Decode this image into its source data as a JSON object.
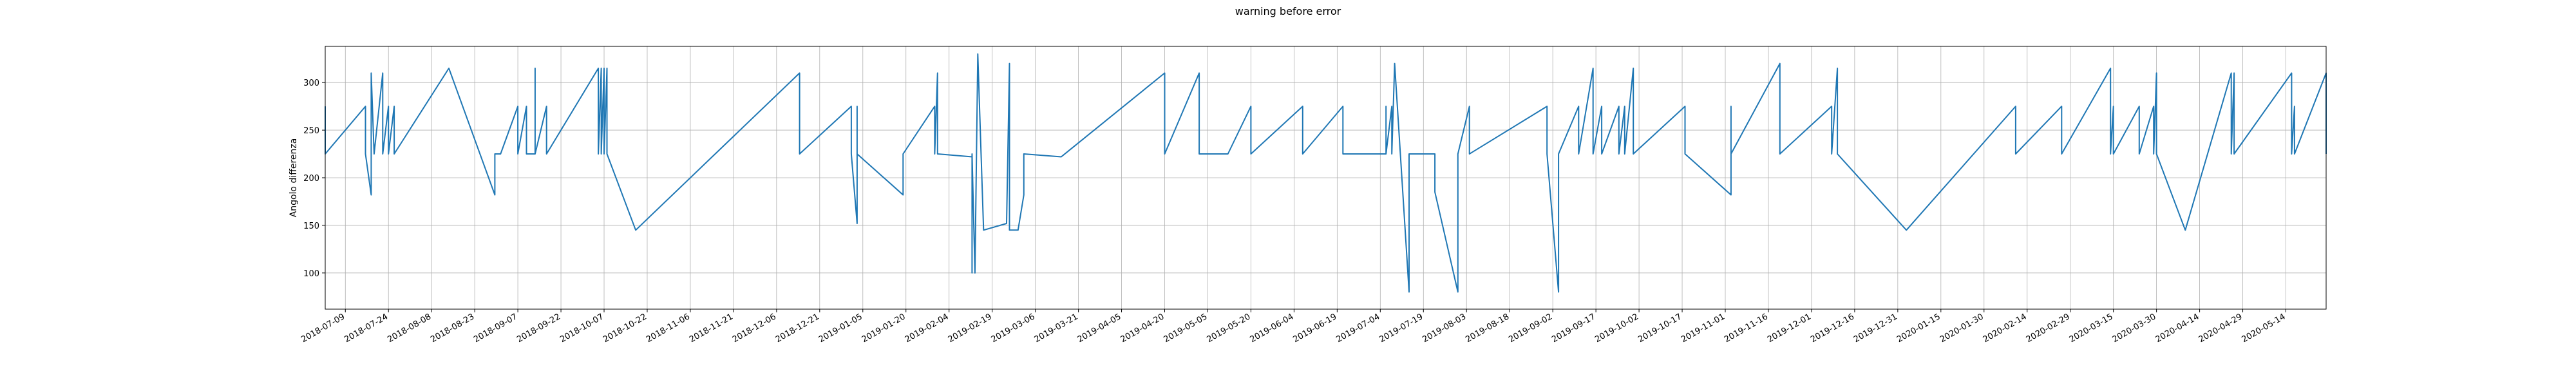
{
  "chart_data": {
    "type": "line",
    "title": "warning before error",
    "xlabel": "",
    "ylabel": "Angolo differenza",
    "xlim": [
      "2018-07-02",
      "2020-05-28"
    ],
    "ylim": [
      62,
      338
    ],
    "grid": true,
    "line_color": "#1f77b4",
    "x_tick_labels": [
      "2018-07-09",
      "2018-07-24",
      "2018-08-08",
      "2018-08-23",
      "2018-09-07",
      "2018-09-22",
      "2018-10-07",
      "2018-10-22",
      "2018-11-06",
      "2018-11-21",
      "2018-12-06",
      "2018-12-21",
      "2019-01-05",
      "2019-01-20",
      "2019-02-04",
      "2019-02-19",
      "2019-03-06",
      "2019-03-21",
      "2019-04-05",
      "2019-04-20",
      "2019-05-05",
      "2019-05-20",
      "2019-06-04",
      "2019-06-19",
      "2019-07-04",
      "2019-07-19",
      "2019-08-03",
      "2019-08-18",
      "2019-09-02",
      "2019-09-17",
      "2019-10-02",
      "2019-10-17",
      "2019-11-01",
      "2019-11-16",
      "2019-12-01",
      "2019-12-16",
      "2019-12-31",
      "2020-01-15",
      "2020-01-30",
      "2020-02-14",
      "2020-02-29",
      "2020-03-15",
      "2020-03-30",
      "2020-04-14",
      "2020-04-29",
      "2020-05-14"
    ],
    "y_ticks": [
      100,
      150,
      200,
      250,
      300
    ],
    "series": [
      {
        "points": [
          [
            "2018-07-02",
            275
          ],
          [
            "2018-07-02",
            225
          ],
          [
            "2018-07-16",
            275
          ],
          [
            "2018-07-16",
            225
          ],
          [
            "2018-07-18",
            182
          ],
          [
            "2018-07-18",
            310
          ],
          [
            "2018-07-19",
            225
          ],
          [
            "2018-07-22",
            310
          ],
          [
            "2018-07-22",
            225
          ],
          [
            "2018-07-24",
            275
          ],
          [
            "2018-07-24",
            225
          ],
          [
            "2018-07-26",
            275
          ],
          [
            "2018-07-26",
            225
          ],
          [
            "2018-08-14",
            315
          ],
          [
            "2018-08-30",
            182
          ],
          [
            "2018-08-30",
            225
          ],
          [
            "2018-09-01",
            225
          ],
          [
            "2018-09-07",
            275
          ],
          [
            "2018-09-07",
            225
          ],
          [
            "2018-09-10",
            275
          ],
          [
            "2018-09-10",
            225
          ],
          [
            "2018-09-13",
            225
          ],
          [
            "2018-09-13",
            315
          ],
          [
            "2018-09-13",
            225
          ],
          [
            "2018-09-17",
            275
          ],
          [
            "2018-09-17",
            225
          ],
          [
            "2018-10-05",
            315
          ],
          [
            "2018-10-05",
            225
          ],
          [
            "2018-10-06",
            315
          ],
          [
            "2018-10-06",
            225
          ],
          [
            "2018-10-07",
            315
          ],
          [
            "2018-10-07",
            225
          ],
          [
            "2018-10-08",
            315
          ],
          [
            "2018-10-08",
            225
          ],
          [
            "2018-10-18",
            145
          ],
          [
            "2018-12-14",
            310
          ],
          [
            "2018-12-14",
            225
          ],
          [
            "2019-01-01",
            275
          ],
          [
            "2019-01-01",
            225
          ],
          [
            "2019-01-03",
            152
          ],
          [
            "2019-01-03",
            275
          ],
          [
            "2019-01-03",
            225
          ],
          [
            "2019-01-19",
            182
          ],
          [
            "2019-01-19",
            225
          ],
          [
            "2019-01-30",
            275
          ],
          [
            "2019-01-30",
            225
          ],
          [
            "2019-01-31",
            310
          ],
          [
            "2019-01-31",
            225
          ],
          [
            "2019-02-12",
            222
          ],
          [
            "2019-02-12",
            100
          ],
          [
            "2019-02-12",
            225
          ],
          [
            "2019-02-13",
            100
          ],
          [
            "2019-02-14",
            330
          ],
          [
            "2019-02-16",
            145
          ],
          [
            "2019-02-24",
            152
          ],
          [
            "2019-02-25",
            320
          ],
          [
            "2019-02-25",
            145
          ],
          [
            "2019-02-28",
            145
          ],
          [
            "2019-03-02",
            182
          ],
          [
            "2019-03-02",
            225
          ],
          [
            "2019-03-15",
            222
          ],
          [
            "2019-04-20",
            310
          ],
          [
            "2019-04-20",
            225
          ],
          [
            "2019-05-02",
            310
          ],
          [
            "2019-05-02",
            225
          ],
          [
            "2019-05-12",
            225
          ],
          [
            "2019-05-20",
            275
          ],
          [
            "2019-05-20",
            225
          ],
          [
            "2019-06-07",
            275
          ],
          [
            "2019-06-07",
            225
          ],
          [
            "2019-06-21",
            275
          ],
          [
            "2019-06-21",
            225
          ],
          [
            "2019-07-06",
            225
          ],
          [
            "2019-07-06",
            275
          ],
          [
            "2019-07-06",
            225
          ],
          [
            "2019-07-08",
            275
          ],
          [
            "2019-07-08",
            225
          ],
          [
            "2019-07-09",
            320
          ],
          [
            "2019-07-14",
            80
          ],
          [
            "2019-07-14",
            225
          ],
          [
            "2019-07-23",
            225
          ],
          [
            "2019-07-23",
            185
          ],
          [
            "2019-07-31",
            80
          ],
          [
            "2019-07-31",
            225
          ],
          [
            "2019-08-04",
            275
          ],
          [
            "2019-08-04",
            225
          ],
          [
            "2019-08-31",
            275
          ],
          [
            "2019-08-31",
            225
          ],
          [
            "2019-09-04",
            80
          ],
          [
            "2019-09-04",
            225
          ],
          [
            "2019-09-11",
            275
          ],
          [
            "2019-09-11",
            225
          ],
          [
            "2019-09-16",
            315
          ],
          [
            "2019-09-16",
            225
          ],
          [
            "2019-09-19",
            275
          ],
          [
            "2019-09-19",
            225
          ],
          [
            "2019-09-25",
            275
          ],
          [
            "2019-09-25",
            225
          ],
          [
            "2019-09-27",
            275
          ],
          [
            "2019-09-27",
            225
          ],
          [
            "2019-09-30",
            315
          ],
          [
            "2019-09-30",
            225
          ],
          [
            "2019-10-18",
            275
          ],
          [
            "2019-10-18",
            225
          ],
          [
            "2019-11-03",
            182
          ],
          [
            "2019-11-03",
            275
          ],
          [
            "2019-11-03",
            225
          ],
          [
            "2019-11-20",
            320
          ],
          [
            "2019-11-20",
            225
          ],
          [
            "2019-12-08",
            275
          ],
          [
            "2019-12-08",
            225
          ],
          [
            "2019-12-10",
            315
          ],
          [
            "2019-12-10",
            225
          ],
          [
            "2020-01-03",
            145
          ],
          [
            "2020-02-10",
            275
          ],
          [
            "2020-02-10",
            225
          ],
          [
            "2020-02-26",
            275
          ],
          [
            "2020-02-26",
            225
          ],
          [
            "2020-03-14",
            315
          ],
          [
            "2020-03-14",
            225
          ],
          [
            "2020-03-15",
            275
          ],
          [
            "2020-03-15",
            225
          ],
          [
            "2020-03-24",
            275
          ],
          [
            "2020-03-24",
            225
          ],
          [
            "2020-03-29",
            275
          ],
          [
            "2020-03-29",
            225
          ],
          [
            "2020-03-30",
            310
          ],
          [
            "2020-03-30",
            225
          ],
          [
            "2020-04-09",
            145
          ],
          [
            "2020-04-25",
            310
          ],
          [
            "2020-04-25",
            225
          ],
          [
            "2020-04-26",
            310
          ],
          [
            "2020-04-26",
            225
          ],
          [
            "2020-05-16",
            310
          ],
          [
            "2020-05-16",
            225
          ],
          [
            "2020-05-17",
            275
          ],
          [
            "2020-05-17",
            225
          ],
          [
            "2020-05-28",
            310
          ],
          [
            "2020-05-28",
            225
          ]
        ]
      }
    ]
  }
}
